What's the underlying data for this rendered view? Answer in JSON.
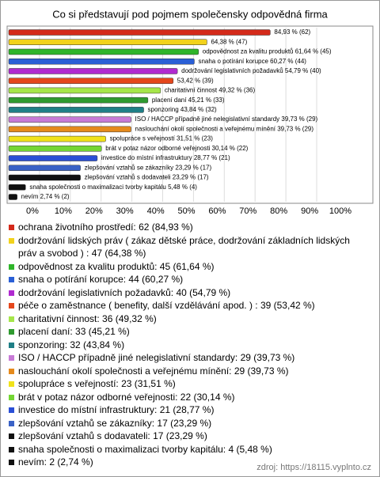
{
  "chart_data": {
    "type": "bar",
    "orientation": "horizontal",
    "title": "Co si představují pod pojmem společensky odpovědná firma",
    "categories": [
      "ochrana životního prostředí: 62 (84,93 %)",
      "dodržování lidských práv ( zákaz dětské práce, dodržování základních lidských práv a svobod ) : 47 (64,38 %)",
      "odpovědnost za kvalitu produktů: 45 (61,64 %)",
      "snaha o potírání korupce: 44 (60,27 %)",
      "dodržování legislativních požadavků: 40 (54,79 %)",
      "péče o zaměstnance ( benefity, další vzdělávání apod. ) : 39 (53,42 %)",
      "charitativní činnost: 36 (49,32 %)",
      "placení daní: 33 (45,21 %)",
      "sponzoring: 32 (43,84 %)",
      "ISO / HACCP případně jiné nelegislativní standardy: 29 (39,73 %)",
      "naslouchání okolí společnosti a veřejnému mínění: 29 (39,73 %)",
      "spolupráce s veřejností: 23 (31,51 %)",
      "brát v potaz názor odborné veřejnosti: 22 (30,14 %)",
      "investice do místní infrastruktury: 21 (28,77 %)",
      "zlepšování vztahů se zákazníky: 17 (23,29 %)",
      "zlepšování vztahů s dodavateli: 17 (23,29 %)",
      "snaha společnosti o maximalizaci tvorby kapitálu: 4 (5,48 %)",
      "nevím: 2 (2,74 %)"
    ],
    "values": [
      84.93,
      64.38,
      61.64,
      60.27,
      54.79,
      53.42,
      49.32,
      45.21,
      43.84,
      39.73,
      39.73,
      31.51,
      30.14,
      28.77,
      23.29,
      23.29,
      5.48,
      2.74
    ],
    "value_labels": [
      "84,93 % (62)",
      "64,38 % (47)",
      "odpovědnost za kvalitu produktů 61,64 % (45)",
      "snaha o potírání korupce 60,27 % (44)",
      "dodržování legislativních požadavků 54,79 % (40)",
      "53,42 % (39)",
      "charitativní činnost 49,32 % (36)",
      "placení daní 45,21 % (33)",
      "sponzoring 43,84 % (32)",
      "ISO / HACCP případně jiné nelegislativní standardy 39,73 % (29)",
      "naslouchání okolí společnosti a veřejnému mínění 39,73 % (29)",
      "spolupráce s veřejností 31,51 % (23)",
      "brát v potaz názor odborné veřejnosti 30,14 % (22)",
      "investice do místní infrastruktury 28,77 % (21)",
      "zlepšování vztahů se zákazníky 23,29 % (17)",
      "zlepšování vztahů s dodavateli 23,29 % (17)",
      "snaha společnosti o maximalizaci tvorby kapitálu 5,48 % (4)",
      "nevím 2,74 % (2)"
    ],
    "colors": [
      "#d42a1a",
      "#f2d21c",
      "#2fb52a",
      "#2a5fd6",
      "#b02ad0",
      "#e5471c",
      "#a6e64a",
      "#2f9a2f",
      "#1f7f86",
      "#c77ad6",
      "#e58a1c",
      "#f0e21a",
      "#74d634",
      "#2a4fd6",
      "#3a62c6",
      "#111111",
      "#111111",
      "#111111"
    ],
    "xlim": [
      0,
      100
    ],
    "xticks": [
      {
        "value": 0,
        "label": "0%"
      },
      {
        "value": 10,
        "label": "10%"
      },
      {
        "value": 20,
        "label": "20%"
      },
      {
        "value": 30,
        "label": "30%"
      },
      {
        "value": 40,
        "label": "40%"
      },
      {
        "value": 50,
        "label": "50%"
      },
      {
        "value": 60,
        "label": "60%"
      },
      {
        "value": 70,
        "label": "70%"
      },
      {
        "value": 80,
        "label": "80%"
      },
      {
        "value": 90,
        "label": "90%"
      },
      {
        "value": 100,
        "label": "100%"
      }
    ],
    "grid": true,
    "source": "zdroj: https://18115.vyplnto.cz"
  }
}
